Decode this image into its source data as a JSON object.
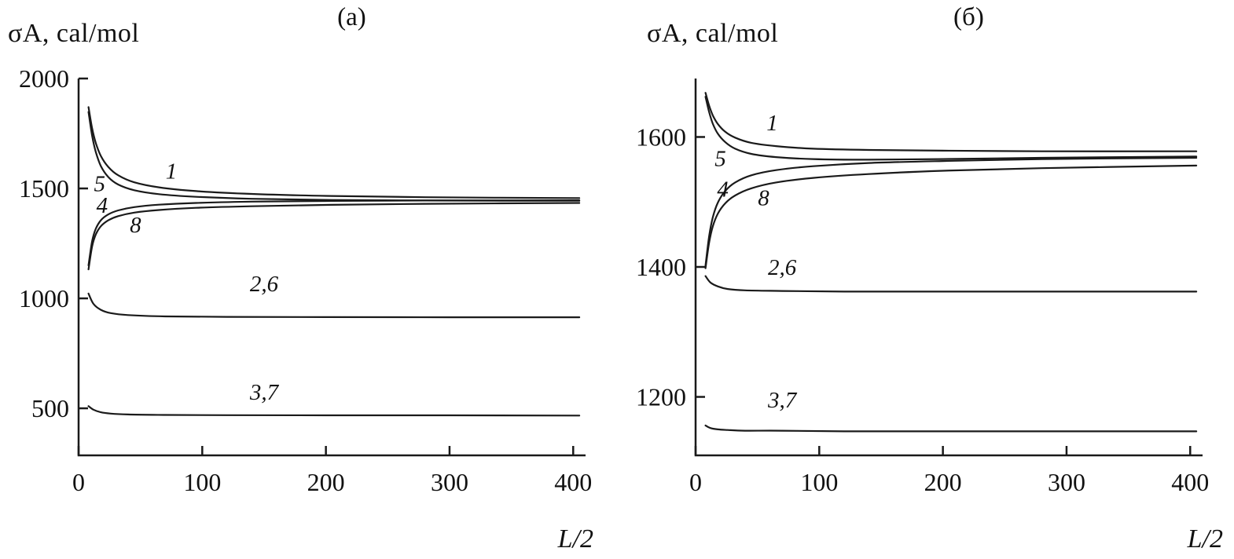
{
  "page": {
    "background": "#ffffff",
    "line_color": "#1a1a1a"
  },
  "chart_data": [
    {
      "type": "line",
      "title": "(а)",
      "ylabel": "σA, cal/mol",
      "xlabel": "L/2",
      "xlim": [
        0,
        410
      ],
      "ylim": [
        286,
        2000
      ],
      "xticks": [
        0,
        100,
        200,
        300,
        400
      ],
      "yticks": [
        500,
        1000,
        1500,
        2000
      ],
      "grid": false,
      "legend": "inline curve labels",
      "line_color": "#1a1a1a",
      "series": [
        {
          "name": "1",
          "x": [
            8,
            11,
            14,
            18,
            24,
            32,
            45,
            65,
            95,
            140,
            200,
            280,
            405
          ],
          "y": [
            1870,
            1772,
            1705,
            1648,
            1598,
            1560,
            1528,
            1505,
            1488,
            1475,
            1466,
            1460,
            1456
          ]
        },
        {
          "name": "5",
          "x": [
            8,
            11,
            14,
            18,
            24,
            32,
            45,
            65,
            95,
            140,
            200,
            280,
            405
          ],
          "y": [
            1848,
            1738,
            1664,
            1602,
            1552,
            1518,
            1492,
            1474,
            1462,
            1453,
            1448,
            1445,
            1444
          ]
        },
        {
          "name": "4",
          "x": [
            8,
            11,
            14,
            18,
            24,
            32,
            45,
            65,
            95,
            140,
            200,
            280,
            405
          ],
          "y": [
            1150,
            1262,
            1318,
            1355,
            1382,
            1400,
            1415,
            1426,
            1434,
            1440,
            1443,
            1445,
            1446
          ]
        },
        {
          "name": "8",
          "x": [
            8,
            11,
            14,
            18,
            24,
            32,
            45,
            65,
            95,
            140,
            200,
            280,
            405
          ],
          "y": [
            1132,
            1238,
            1292,
            1328,
            1355,
            1374,
            1390,
            1402,
            1412,
            1419,
            1425,
            1430,
            1434
          ]
        },
        {
          "name": "2,6",
          "x": [
            8,
            12,
            18,
            26,
            40,
            70,
            120,
            200,
            300,
            405
          ],
          "y": [
            1022,
            975,
            948,
            933,
            924,
            918,
            916,
            915,
            914,
            914
          ]
        },
        {
          "name": "3,7",
          "x": [
            8,
            12,
            18,
            26,
            40,
            70,
            120,
            200,
            300,
            405
          ],
          "y": [
            510,
            494,
            482,
            476,
            472,
            470,
            469,
            468,
            468,
            467
          ]
        }
      ],
      "annotations": [
        {
          "text": "1",
          "x": 75,
          "y": 1545
        },
        {
          "text": "5",
          "x": 17,
          "y": 1487
        },
        {
          "text": "4",
          "x": 19,
          "y": 1390
        },
        {
          "text": "8",
          "x": 46,
          "y": 1300
        },
        {
          "text": "2,6",
          "x": 150,
          "y": 1032
        },
        {
          "text": "3,7",
          "x": 150,
          "y": 540
        }
      ]
    },
    {
      "type": "line",
      "title": "(б)",
      "ylabel": "σA, cal/mol",
      "xlabel": "L/2",
      "xlim": [
        0,
        410
      ],
      "ylim": [
        1110,
        1690
      ],
      "xticks": [
        0,
        100,
        200,
        300,
        400
      ],
      "yticks": [
        1200,
        1400,
        1600
      ],
      "grid": false,
      "legend": "inline curve labels",
      "line_color": "#1a1a1a",
      "series": [
        {
          "name": "1",
          "x": [
            8,
            11,
            14,
            18,
            24,
            32,
            45,
            65,
            95,
            140,
            200,
            280,
            405
          ],
          "y": [
            1668,
            1648,
            1633,
            1620,
            1608,
            1599,
            1591,
            1586,
            1582,
            1580,
            1579,
            1578,
            1578
          ]
        },
        {
          "name": "5",
          "x": [
            8,
            11,
            14,
            18,
            24,
            32,
            45,
            65,
            95,
            140,
            200,
            280,
            405
          ],
          "y": [
            1662,
            1638,
            1620,
            1605,
            1592,
            1582,
            1574,
            1569,
            1566,
            1565,
            1566,
            1568,
            1570
          ]
        },
        {
          "name": "4",
          "x": [
            8,
            11,
            14,
            18,
            24,
            32,
            45,
            65,
            95,
            140,
            200,
            280,
            405
          ],
          "y": [
            1402,
            1448,
            1477,
            1499,
            1517,
            1530,
            1541,
            1549,
            1555,
            1560,
            1563,
            1566,
            1568
          ]
        },
        {
          "name": "8",
          "x": [
            8,
            11,
            14,
            18,
            24,
            32,
            45,
            65,
            95,
            140,
            200,
            280,
            405
          ],
          "y": [
            1398,
            1438,
            1463,
            1482,
            1498,
            1510,
            1521,
            1530,
            1537,
            1543,
            1548,
            1552,
            1556
          ]
        },
        {
          "name": "2,6",
          "x": [
            8,
            12,
            18,
            26,
            40,
            70,
            120,
            200,
            300,
            405
          ],
          "y": [
            1386,
            1376,
            1370,
            1366,
            1364,
            1363,
            1362,
            1362,
            1362,
            1362
          ]
        },
        {
          "name": "3,7",
          "x": [
            8,
            12,
            18,
            26,
            40,
            70,
            120,
            200,
            300,
            405
          ],
          "y": [
            1156,
            1152,
            1150,
            1149,
            1148,
            1148,
            1147,
            1147,
            1147,
            1147
          ]
        }
      ],
      "annotations": [
        {
          "text": "1",
          "x": 62,
          "y": 1610
        },
        {
          "text": "5",
          "x": 20,
          "y": 1555
        },
        {
          "text": "4",
          "x": 22,
          "y": 1508
        },
        {
          "text": "8",
          "x": 55,
          "y": 1495
        },
        {
          "text": "2,6",
          "x": 70,
          "y": 1388
        },
        {
          "text": "3,7",
          "x": 70,
          "y": 1184
        }
      ]
    }
  ]
}
